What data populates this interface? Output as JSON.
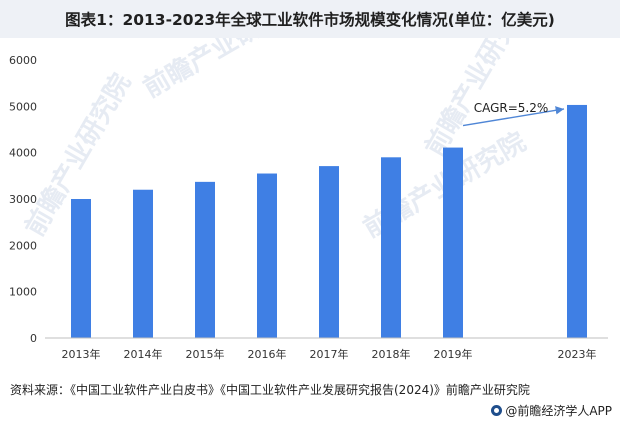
{
  "title": "图表1：2013-2023年全球工业软件市场规模变化情况(单位：亿美元)",
  "source": "资料来源：《中国工业软件产业白皮书》《中国工业软件产业发展研究报告(2024)》前瞻产业研究院",
  "brand": "@前瞻经济学人APP",
  "watermark_text": "前瞻产业研究院",
  "chart_data": {
    "type": "bar",
    "categories": [
      "2013年",
      "2014年",
      "2015年",
      "2016年",
      "2017年",
      "2018年",
      "2019年",
      "2023年"
    ],
    "values": [
      3000,
      3200,
      3370,
      3550,
      3710,
      3900,
      4110,
      5030
    ],
    "ylim": [
      0,
      6000
    ],
    "yticks": [
      0,
      1000,
      2000,
      3000,
      4000,
      5000,
      6000
    ],
    "grid": false,
    "annotation": {
      "text": "CAGR=5.2%",
      "from": "2019年",
      "to": "2023年"
    },
    "bar_color": "#3f7fe4",
    "arrow_color": "#4f86d6"
  }
}
